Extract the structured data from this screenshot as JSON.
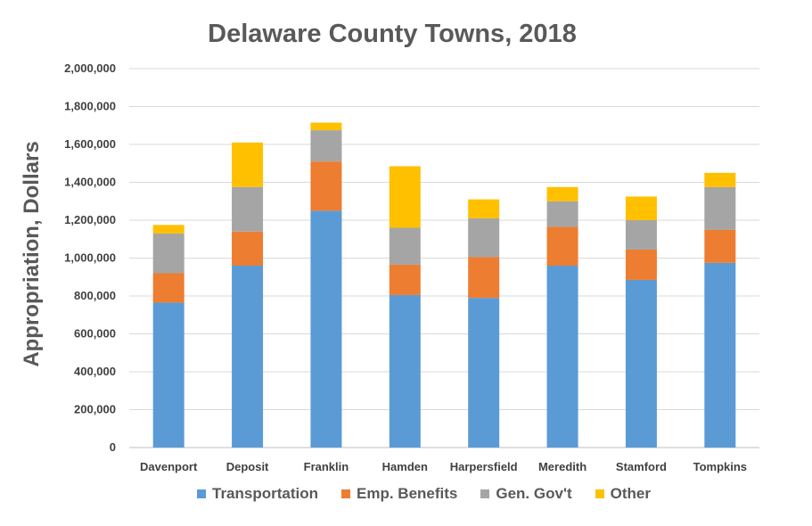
{
  "chart_data": {
    "type": "bar",
    "stacked": true,
    "title": "Delaware County Towns, 2018",
    "xlabel": "",
    "ylabel": "Appropriation, Dollars",
    "ylim": [
      0,
      2000000
    ],
    "yticks": [
      "0",
      "200,000",
      "400,000",
      "600,000",
      "800,000",
      "1,000,000",
      "1,200,000",
      "1,400,000",
      "1,600,000",
      "1,800,000",
      "2,000,000"
    ],
    "categories": [
      "Davenport",
      "Deposit",
      "Franklin",
      "Hamden",
      "Harpersfield",
      "Meredith",
      "Stamford",
      "Tompkins"
    ],
    "series": [
      {
        "name": "Transportation",
        "color": "#5b9bd5",
        "values": [
          765000,
          960000,
          1250000,
          805000,
          790000,
          960000,
          885000,
          975000
        ]
      },
      {
        "name": "Emp. Benefits",
        "color": "#ed7d31",
        "values": [
          155000,
          180000,
          260000,
          160000,
          215000,
          205000,
          160000,
          175000
        ]
      },
      {
        "name": "Gen. Gov't",
        "color": "#a5a5a5",
        "values": [
          210000,
          235000,
          165000,
          195000,
          205000,
          135000,
          155000,
          225000
        ]
      },
      {
        "name": "Other",
        "color": "#ffc000",
        "values": [
          45000,
          235000,
          40000,
          325000,
          100000,
          75000,
          125000,
          75000
        ]
      }
    ],
    "grid": true,
    "legend_position": "bottom"
  }
}
